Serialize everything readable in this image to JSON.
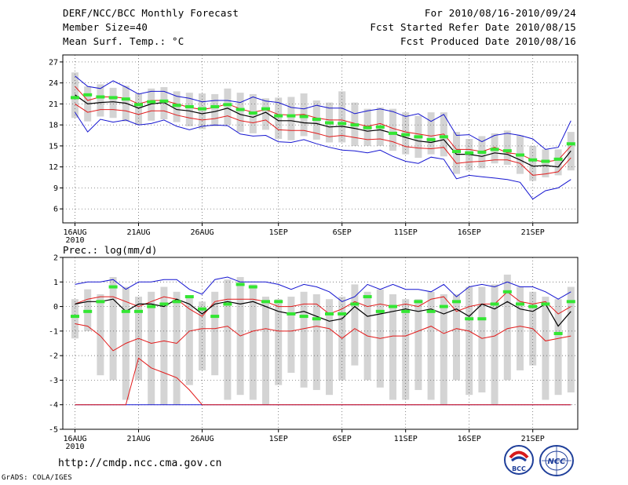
{
  "header": {
    "title": "DERF/NCC/BCC Monthly Forecast",
    "member_size": "Member Size=40",
    "variable_label": "Mean Surf. Temp.: °C",
    "period": "For 2010/08/16-2010/09/24",
    "fcst_started": "Fcst Started Refer Date 2010/08/15",
    "fcst_produced": "Fcst Produced Date 2010/08/16"
  },
  "footer": {
    "url": "http://cmdp.ncc.cma.gov.cn",
    "credit": "GrADS: COLA/IGES",
    "logo_bcc": "BCC",
    "logo_ncc": "NCC"
  },
  "colors": {
    "box": "#d4d4d4",
    "mean": "#000000",
    "spread": "#e21a1a",
    "extreme": "#1414d0",
    "obs": "#33e633",
    "grid": "#555555"
  },
  "chart_data": [
    {
      "type": "line",
      "name": "temperature",
      "ylabel": "Mean Surf. Temp.: °C",
      "ylim": [
        4,
        28
      ],
      "yticks": [
        6,
        9,
        12,
        15,
        18,
        21,
        24,
        27
      ],
      "x_start_day": 1,
      "x_end_day": 40,
      "xticks": [
        {
          "day": 1,
          "label": "16AUG"
        },
        {
          "day": 6,
          "label": "21AUG"
        },
        {
          "day": 11,
          "label": "26AUG"
        },
        {
          "day": 17,
          "label": "1SEP"
        },
        {
          "day": 22,
          "label": "6SEP"
        },
        {
          "day": 27,
          "label": "11SEP"
        },
        {
          "day": 32,
          "label": "16SEP"
        },
        {
          "day": 37,
          "label": "21SEP"
        }
      ],
      "year_label": "2010",
      "box_low": [
        19.0,
        18.5,
        19.2,
        19.0,
        18.5,
        18.0,
        18.6,
        18.8,
        18.4,
        17.8,
        17.4,
        17.8,
        18.0,
        17.0,
        16.8,
        17.3,
        16.0,
        15.8,
        16.4,
        15.9,
        15.5,
        15.5,
        15.0,
        15.0,
        15.0,
        14.3,
        13.8,
        13.3,
        13.8,
        13.5,
        11.0,
        11.5,
        11.8,
        12.5,
        12.3,
        11.0,
        10.0,
        10.5,
        10.8,
        11.5
      ],
      "box_high": [
        25.5,
        23.5,
        23.8,
        23.3,
        23.6,
        22.5,
        23.2,
        23.4,
        22.8,
        22.6,
        22.5,
        22.4,
        23.2,
        22.6,
        22.4,
        21.8,
        21.9,
        22.0,
        22.5,
        21.5,
        21.2,
        22.8,
        21.2,
        20.3,
        20.5,
        20.3,
        19.8,
        19.3,
        19.8,
        19.8,
        17.0,
        16.0,
        16.4,
        16.8,
        17.2,
        16.5,
        15.0,
        14.5,
        14.5,
        17.0
      ],
      "series": [
        {
          "name": "max",
          "color_key": "extreme",
          "values": [
            25.0,
            23.5,
            23.2,
            24.3,
            23.4,
            22.4,
            22.8,
            22.8,
            22.1,
            21.8,
            21.3,
            21.5,
            21.5,
            21.2,
            22.0,
            21.4,
            21.2,
            20.5,
            20.3,
            20.8,
            20.4,
            20.4,
            19.6,
            20.0,
            20.3,
            19.9,
            19.2,
            19.6,
            18.5,
            19.5,
            16.5,
            16.6,
            15.6,
            16.5,
            16.8,
            16.5,
            16.0,
            14.5,
            14.8,
            18.6
          ]
        },
        {
          "name": "upper",
          "color_key": "spread",
          "values": [
            23.5,
            21.5,
            22.0,
            22.0,
            21.8,
            21.0,
            21.5,
            21.5,
            21.0,
            20.5,
            20.2,
            20.5,
            21.0,
            20.3,
            19.8,
            20.2,
            19.5,
            19.4,
            19.5,
            19.0,
            18.7,
            18.7,
            18.2,
            17.8,
            18.2,
            17.5,
            17.0,
            16.7,
            16.4,
            16.7,
            14.5,
            14.5,
            14.2,
            14.8,
            14.0,
            13.8,
            13.0,
            12.7,
            13.0,
            15.0
          ]
        },
        {
          "name": "mean",
          "color_key": "mean",
          "values": [
            22.3,
            21.0,
            21.2,
            21.3,
            21.1,
            20.4,
            21.0,
            21.2,
            20.2,
            20.0,
            19.6,
            19.9,
            20.4,
            19.5,
            19.1,
            19.8,
            18.6,
            18.6,
            18.3,
            18.2,
            17.7,
            17.8,
            17.5,
            17.1,
            17.3,
            16.8,
            16.2,
            15.7,
            15.5,
            15.9,
            13.8,
            13.8,
            13.5,
            14.0,
            13.8,
            13.0,
            12.1,
            12.2,
            12.0,
            14.3
          ]
        },
        {
          "name": "lower",
          "color_key": "spread",
          "values": [
            21.0,
            19.8,
            20.2,
            20.2,
            20.0,
            19.5,
            20.0,
            20.0,
            19.4,
            19.0,
            18.7,
            18.9,
            19.3,
            18.6,
            18.3,
            18.7,
            17.3,
            17.2,
            17.2,
            16.8,
            16.3,
            16.5,
            16.2,
            15.9,
            16.0,
            15.6,
            14.9,
            14.7,
            14.6,
            14.8,
            12.5,
            12.7,
            12.8,
            13.0,
            13.0,
            12.5,
            10.8,
            11.0,
            11.3,
            13.3
          ]
        },
        {
          "name": "min",
          "color_key": "extreme",
          "values": [
            19.8,
            17.0,
            18.8,
            18.4,
            18.7,
            18.0,
            18.2,
            18.7,
            17.8,
            17.3,
            17.8,
            18.0,
            17.9,
            16.7,
            16.4,
            16.5,
            15.6,
            15.5,
            15.9,
            15.3,
            14.8,
            14.4,
            14.3,
            14.0,
            14.4,
            13.5,
            12.8,
            12.5,
            13.4,
            13.1,
            10.3,
            10.8,
            10.6,
            10.4,
            10.2,
            9.8,
            7.4,
            8.6,
            9.0,
            10.2
          ]
        }
      ],
      "marker_series": {
        "name": "observed",
        "color_key": "obs",
        "values": [
          21.9,
          22.3,
          22.0,
          21.9,
          21.7,
          20.9,
          21.3,
          21.4,
          20.8,
          20.6,
          20.3,
          20.6,
          20.9,
          20.2,
          19.7,
          20.3,
          19.3,
          19.3,
          19.2,
          18.8,
          18.3,
          18.2,
          18.0,
          17.6,
          17.7,
          16.8,
          16.6,
          16.3,
          15.9,
          16.3,
          14.2,
          14.0,
          14.1,
          14.5,
          14.3,
          13.7,
          13.0,
          12.8,
          13.1,
          15.3
        ]
      }
    },
    {
      "type": "line",
      "name": "precipitation",
      "ylabel": "Prec.: log(mm/d)",
      "ylim": [
        -5,
        2
      ],
      "yticks": [
        -5,
        -4,
        -3,
        -2,
        -1,
        0,
        1,
        2
      ],
      "x_start_day": 1,
      "x_end_day": 40,
      "xticks": [
        {
          "day": 1,
          "label": "16AUG"
        },
        {
          "day": 6,
          "label": "21AUG"
        },
        {
          "day": 11,
          "label": "26AUG"
        },
        {
          "day": 17,
          "label": "1SEP"
        },
        {
          "day": 22,
          "label": "6SEP"
        },
        {
          "day": 27,
          "label": "11SEP"
        },
        {
          "day": 32,
          "label": "16SEP"
        },
        {
          "day": 37,
          "label": "21SEP"
        }
      ],
      "year_label": "2010",
      "box_low": [
        -1.3,
        -1.0,
        -2.8,
        -3.0,
        -3.8,
        -3.0,
        -4.0,
        -4.0,
        -4.0,
        -3.2,
        -2.6,
        -2.8,
        -3.8,
        -3.6,
        -3.8,
        -4.0,
        -3.2,
        -2.7,
        -3.3,
        -3.4,
        -3.6,
        -3.0,
        -2.4,
        -3.0,
        -3.3,
        -3.8,
        -3.8,
        -3.4,
        -3.8,
        -4.0,
        -3.0,
        -3.6,
        -3.5,
        -4.0,
        -3.0,
        -2.6,
        -2.4,
        -3.8,
        -3.6,
        -3.5
      ],
      "box_high": [
        0.3,
        0.7,
        0.5,
        1.2,
        0.8,
        0.4,
        0.6,
        0.8,
        0.6,
        0.4,
        0.2,
        0.6,
        1.1,
        1.2,
        0.9,
        0.4,
        0.3,
        0.4,
        0.6,
        0.5,
        0.3,
        0.4,
        0.9,
        0.6,
        0.7,
        0.5,
        0.3,
        0.3,
        0.6,
        0.5,
        0.5,
        0.8,
        0.8,
        0.9,
        1.3,
        0.8,
        0.6,
        0.4,
        0.3,
        0.8
      ],
      "series": [
        {
          "name": "max",
          "color_key": "extreme",
          "values": [
            0.9,
            1.0,
            1.0,
            1.1,
            0.7,
            1.0,
            1.0,
            1.1,
            1.1,
            0.7,
            0.5,
            1.1,
            1.2,
            1.0,
            1.0,
            1.0,
            0.9,
            0.7,
            0.9,
            0.8,
            0.6,
            0.2,
            0.4,
            0.9,
            0.7,
            0.9,
            0.7,
            0.7,
            0.6,
            0.9,
            0.4,
            0.8,
            0.9,
            0.8,
            1.0,
            0.8,
            0.8,
            0.6,
            0.3,
            0.6
          ]
        },
        {
          "name": "upper",
          "color_key": "spread",
          "values": [
            0.1,
            0.3,
            0.4,
            0.4,
            0.2,
            0.0,
            0.2,
            0.4,
            0.3,
            -0.1,
            -0.4,
            0.2,
            0.3,
            0.3,
            0.3,
            0.2,
            0.0,
            0.0,
            0.1,
            0.1,
            -0.3,
            -0.1,
            0.2,
            0.0,
            0.1,
            0.0,
            0.1,
            0.0,
            0.3,
            0.4,
            -0.2,
            0.0,
            0.1,
            0.1,
            0.6,
            0.2,
            0.1,
            0.2,
            -0.3,
            0.0
          ]
        },
        {
          "name": "mean",
          "color_key": "mean",
          "values": [
            0.1,
            0.2,
            0.2,
            0.3,
            -0.2,
            0.1,
            0.1,
            0.0,
            0.3,
            0.1,
            -0.3,
            0.1,
            0.2,
            0.1,
            0.2,
            0.0,
            -0.2,
            -0.3,
            -0.2,
            -0.4,
            -0.6,
            -0.5,
            0.0,
            -0.4,
            -0.3,
            -0.2,
            -0.1,
            -0.2,
            -0.1,
            -0.3,
            -0.1,
            -0.4,
            0.1,
            -0.1,
            0.2,
            -0.1,
            -0.2,
            0.1,
            -0.8,
            -0.2
          ]
        },
        {
          "name": "lower",
          "color_key": "spread",
          "values": [
            -0.7,
            -0.8,
            -1.2,
            -1.8,
            -1.5,
            -1.3,
            -1.5,
            -1.4,
            -1.5,
            -1.0,
            -0.9,
            -0.9,
            -0.8,
            -1.2,
            -1.0,
            -0.9,
            -1.0,
            -1.0,
            -0.9,
            -0.8,
            -0.9,
            -1.3,
            -0.9,
            -1.2,
            -1.3,
            -1.2,
            -1.2,
            -1.0,
            -0.8,
            -1.1,
            -0.9,
            -1.0,
            -1.3,
            -1.2,
            -0.9,
            -0.8,
            -0.9,
            -1.4,
            -1.3,
            -1.2
          ]
        },
        {
          "name": "min",
          "color_key": "extreme",
          "values": [
            -4,
            -4,
            -4,
            -4,
            -4,
            -4,
            -4,
            -4,
            -4,
            -4,
            -4,
            -4,
            -4,
            -4,
            -4,
            -4,
            -4,
            -4,
            -4,
            -4,
            -4,
            -4,
            -4,
            -4,
            -4,
            -4,
            -4,
            -4,
            -4,
            -4,
            -4,
            -4,
            -4,
            -4,
            -4,
            -4,
            -4,
            -4,
            -4,
            -4
          ]
        },
        {
          "name": "lower_dropout",
          "color_key": "spread",
          "values": [
            -4,
            -4,
            -4,
            -4,
            -4,
            -2.1,
            -2.5,
            -2.7,
            -2.9,
            -3.4,
            -4,
            -4,
            -4,
            -4,
            -4,
            -4,
            -4,
            -4,
            -4,
            -4,
            -4,
            -4,
            -4,
            -4,
            -4,
            -4,
            -4,
            -4,
            -4,
            -4,
            -4,
            -4,
            -4,
            -4,
            -4,
            -4,
            -4,
            -4,
            -4,
            -4
          ]
        }
      ],
      "marker_series": {
        "name": "observed",
        "color_key": "obs",
        "values": [
          -0.4,
          -0.2,
          0.2,
          0.8,
          -0.2,
          -0.2,
          0.0,
          0.1,
          0.2,
          0.4,
          -0.1,
          -0.4,
          0.1,
          0.9,
          0.8,
          0.2,
          0.2,
          -0.3,
          -0.4,
          -0.5,
          -0.3,
          -0.3,
          0.1,
          0.4,
          -0.2,
          0.0,
          -0.2,
          0.2,
          -0.2,
          0.0,
          0.2,
          -0.5,
          -0.5,
          0.1,
          0.6,
          0.1,
          0.0,
          0.1,
          -1.1,
          0.2
        ]
      }
    }
  ]
}
